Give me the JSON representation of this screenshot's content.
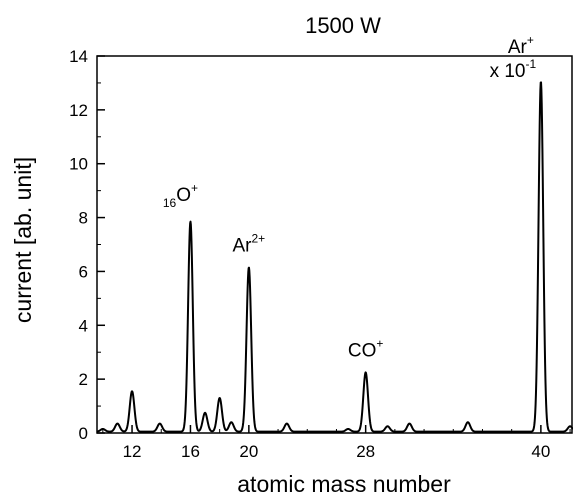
{
  "chart_data": {
    "type": "line",
    "title": "1500 W",
    "xlabel": "atomic mass number",
    "ylabel": "current [ab. unit]",
    "xlim": [
      9.6,
      42.2
    ],
    "ylim": [
      0,
      14
    ],
    "x_ticks": [
      12,
      16,
      20,
      28,
      40
    ],
    "x_tick_labels": [
      "12",
      "16",
      "20",
      "28",
      "40"
    ],
    "y_ticks": [
      0,
      2,
      4,
      6,
      8,
      10,
      12,
      14
    ],
    "y_tick_labels": [
      "0",
      "2",
      "4",
      "6",
      "8",
      "10",
      "12",
      "14"
    ],
    "grid": false,
    "baseline": 0.05,
    "peaks": [
      {
        "x": 10.0,
        "y": 0.1
      },
      {
        "x": 11.0,
        "y": 0.3
      },
      {
        "x": 12.0,
        "y": 1.5
      },
      {
        "x": 13.9,
        "y": 0.3
      },
      {
        "x": 16.0,
        "y": 7.8
      },
      {
        "x": 17.0,
        "y": 0.7
      },
      {
        "x": 18.0,
        "y": 1.25
      },
      {
        "x": 18.8,
        "y": 0.35
      },
      {
        "x": 20.0,
        "y": 6.1
      },
      {
        "x": 22.6,
        "y": 0.3
      },
      {
        "x": 26.8,
        "y": 0.1
      },
      {
        "x": 28.0,
        "y": 2.2
      },
      {
        "x": 29.5,
        "y": 0.2
      },
      {
        "x": 31.0,
        "y": 0.3
      },
      {
        "x": 35.0,
        "y": 0.35
      },
      {
        "x": 40.0,
        "y": 13.0
      },
      {
        "x": 42.0,
        "y": 0.2
      }
    ],
    "annotations": [
      {
        "id": "o16",
        "pre_sub": "16",
        "base": "O",
        "sup": "+",
        "x": 16.0,
        "y": 8.4
      },
      {
        "id": "ar2",
        "base": "Ar",
        "sup": "2+",
        "x": 20.0,
        "y": 6.6
      },
      {
        "id": "co",
        "base": "CO",
        "sup": "+",
        "x": 28.0,
        "y": 2.7
      },
      {
        "id": "ar",
        "base": "Ar",
        "sup": "+",
        "x": 40.0,
        "y": 13.0,
        "line2_base": "x 10",
        "line2_sup": "-1"
      }
    ]
  }
}
